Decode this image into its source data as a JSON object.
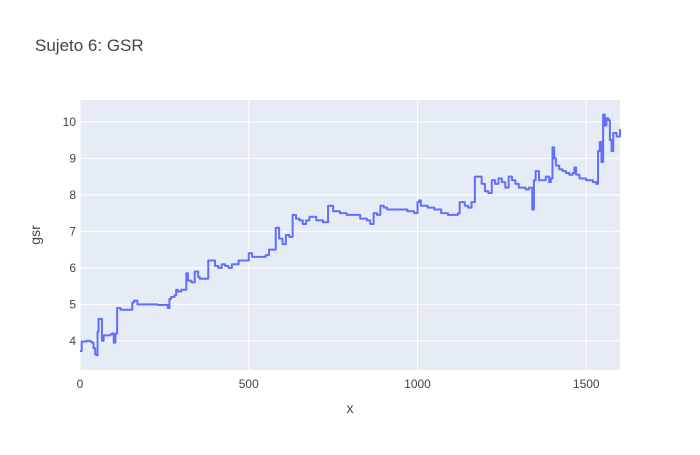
{
  "chart_data": {
    "type": "line",
    "title": "Sujeto 6: GSR",
    "xlabel": "x",
    "ylabel": "gsr",
    "xlim": [
      0,
      1600
    ],
    "ylim": [
      3.2,
      10.6
    ],
    "x_ticks": [
      0,
      500,
      1000,
      1500
    ],
    "y_ticks": [
      4,
      5,
      6,
      7,
      8,
      9,
      10
    ],
    "x_tick_labels": [
      "0",
      "500",
      "1000",
      "1500"
    ],
    "y_tick_labels": [
      "4",
      "5",
      "6",
      "7",
      "8",
      "9",
      "10"
    ],
    "grid": true,
    "line_shape": "step",
    "series": [
      {
        "color": "#636efa",
        "points": [
          [
            0,
            3.72
          ],
          [
            5,
            3.98
          ],
          [
            20,
            4.0
          ],
          [
            30,
            3.98
          ],
          [
            35,
            3.95
          ],
          [
            40,
            3.8
          ],
          [
            45,
            3.62
          ],
          [
            50,
            3.6
          ],
          [
            52,
            4.25
          ],
          [
            55,
            4.6
          ],
          [
            60,
            4.6
          ],
          [
            65,
            4.0
          ],
          [
            70,
            4.15
          ],
          [
            80,
            4.15
          ],
          [
            90,
            4.18
          ],
          [
            95,
            4.2
          ],
          [
            100,
            3.95
          ],
          [
            105,
            4.2
          ],
          [
            110,
            4.9
          ],
          [
            115,
            4.9
          ],
          [
            120,
            4.85
          ],
          [
            130,
            4.85
          ],
          [
            140,
            4.85
          ],
          [
            150,
            4.85
          ],
          [
            155,
            5.05
          ],
          [
            160,
            5.1
          ],
          [
            170,
            5.0
          ],
          [
            200,
            5.0
          ],
          [
            230,
            4.98
          ],
          [
            260,
            4.9
          ],
          [
            265,
            5.15
          ],
          [
            270,
            5.2
          ],
          [
            280,
            5.25
          ],
          [
            285,
            5.4
          ],
          [
            290,
            5.35
          ],
          [
            300,
            5.4
          ],
          [
            310,
            5.4
          ],
          [
            315,
            5.85
          ],
          [
            320,
            5.65
          ],
          [
            330,
            5.6
          ],
          [
            340,
            5.9
          ],
          [
            350,
            5.75
          ],
          [
            355,
            5.7
          ],
          [
            375,
            5.7
          ],
          [
            380,
            6.2
          ],
          [
            390,
            6.2
          ],
          [
            400,
            6.05
          ],
          [
            410,
            6.0
          ],
          [
            420,
            6.1
          ],
          [
            430,
            6.05
          ],
          [
            440,
            6.0
          ],
          [
            450,
            6.1
          ],
          [
            460,
            6.1
          ],
          [
            470,
            6.2
          ],
          [
            480,
            6.2
          ],
          [
            490,
            6.2
          ],
          [
            500,
            6.4
          ],
          [
            510,
            6.3
          ],
          [
            520,
            6.3
          ],
          [
            530,
            6.3
          ],
          [
            540,
            6.3
          ],
          [
            550,
            6.35
          ],
          [
            560,
            6.5
          ],
          [
            580,
            7.1
          ],
          [
            590,
            6.8
          ],
          [
            600,
            6.65
          ],
          [
            610,
            6.9
          ],
          [
            620,
            6.85
          ],
          [
            630,
            7.45
          ],
          [
            640,
            7.35
          ],
          [
            650,
            7.3
          ],
          [
            660,
            7.2
          ],
          [
            670,
            7.3
          ],
          [
            680,
            7.4
          ],
          [
            700,
            7.3
          ],
          [
            720,
            7.25
          ],
          [
            735,
            7.7
          ],
          [
            750,
            7.55
          ],
          [
            770,
            7.5
          ],
          [
            790,
            7.45
          ],
          [
            810,
            7.45
          ],
          [
            830,
            7.35
          ],
          [
            850,
            7.3
          ],
          [
            860,
            7.2
          ],
          [
            870,
            7.5
          ],
          [
            880,
            7.45
          ],
          [
            890,
            7.7
          ],
          [
            900,
            7.65
          ],
          [
            910,
            7.6
          ],
          [
            930,
            7.6
          ],
          [
            950,
            7.6
          ],
          [
            970,
            7.55
          ],
          [
            990,
            7.5
          ],
          [
            1000,
            7.8
          ],
          [
            1005,
            7.85
          ],
          [
            1010,
            7.7
          ],
          [
            1030,
            7.65
          ],
          [
            1050,
            7.6
          ],
          [
            1070,
            7.5
          ],
          [
            1090,
            7.45
          ],
          [
            1110,
            7.45
          ],
          [
            1120,
            7.5
          ],
          [
            1125,
            7.8
          ],
          [
            1130,
            7.8
          ],
          [
            1140,
            7.7
          ],
          [
            1150,
            7.65
          ],
          [
            1160,
            7.8
          ],
          [
            1170,
            8.5
          ],
          [
            1180,
            8.5
          ],
          [
            1190,
            8.3
          ],
          [
            1200,
            8.1
          ],
          [
            1210,
            8.05
          ],
          [
            1220,
            8.4
          ],
          [
            1230,
            8.3
          ],
          [
            1240,
            8.45
          ],
          [
            1250,
            8.35
          ],
          [
            1260,
            8.2
          ],
          [
            1270,
            8.5
          ],
          [
            1280,
            8.4
          ],
          [
            1290,
            8.3
          ],
          [
            1300,
            8.2
          ],
          [
            1310,
            8.2
          ],
          [
            1320,
            8.15
          ],
          [
            1330,
            8.2
          ],
          [
            1340,
            7.6
          ],
          [
            1345,
            8.4
          ],
          [
            1350,
            8.65
          ],
          [
            1360,
            8.4
          ],
          [
            1370,
            8.4
          ],
          [
            1380,
            8.5
          ],
          [
            1390,
            8.35
          ],
          [
            1395,
            8.45
          ],
          [
            1400,
            9.3
          ],
          [
            1405,
            9.0
          ],
          [
            1410,
            8.8
          ],
          [
            1420,
            8.7
          ],
          [
            1430,
            8.65
          ],
          [
            1440,
            8.6
          ],
          [
            1450,
            8.55
          ],
          [
            1460,
            8.6
          ],
          [
            1465,
            8.75
          ],
          [
            1470,
            8.55
          ],
          [
            1480,
            8.45
          ],
          [
            1500,
            8.4
          ],
          [
            1520,
            8.35
          ],
          [
            1530,
            8.3
          ],
          [
            1535,
            9.2
          ],
          [
            1540,
            9.45
          ],
          [
            1545,
            8.9
          ],
          [
            1550,
            10.2
          ],
          [
            1555,
            9.9
          ],
          [
            1560,
            10.1
          ],
          [
            1565,
            10.05
          ],
          [
            1570,
            9.5
          ],
          [
            1575,
            9.2
          ],
          [
            1580,
            9.7
          ],
          [
            1590,
            9.6
          ],
          [
            1600,
            9.8
          ]
        ]
      }
    ]
  }
}
